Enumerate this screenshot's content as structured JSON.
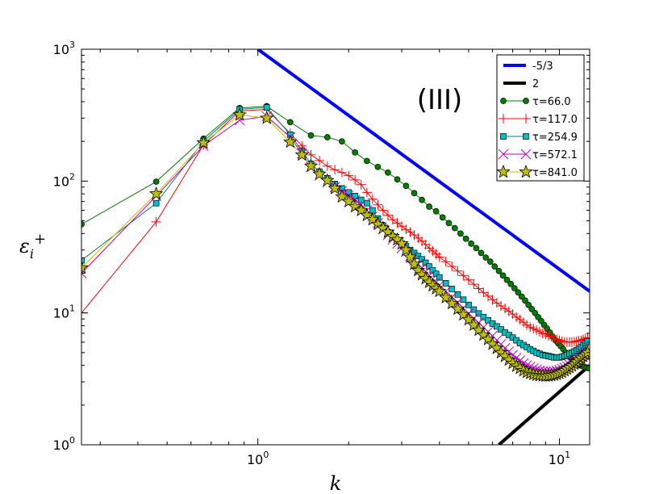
{
  "chart_data": {
    "type": "line",
    "xscale": "log",
    "yscale": "log",
    "xlim": [
      0.26,
      12.6
    ],
    "ylim": [
      1,
      1000
    ],
    "xlabel": "k",
    "ylabel": "ε_i^+",
    "ylabel_parts": {
      "base": "ε",
      "sub": "i",
      "sup": "+"
    },
    "annotation": "(III)",
    "x_ticks": [
      {
        "value": 1,
        "base": "10",
        "exp": "0"
      },
      {
        "value": 10,
        "base": "10",
        "exp": "1"
      }
    ],
    "y_ticks": [
      {
        "value": 1,
        "base": "10",
        "exp": "0"
      },
      {
        "value": 10,
        "base": "10",
        "exp": "1"
      },
      {
        "value": 100,
        "base": "10",
        "exp": "2"
      },
      {
        "value": 1000,
        "base": "10",
        "exp": "3"
      }
    ],
    "legend_position": "top-right",
    "reference_lines": [
      {
        "name": "-5/3",
        "label": "-5/3",
        "color": "#0000ff",
        "x": [
          1.0,
          12.6
        ],
        "y": [
          1000,
          14.6
        ]
      },
      {
        "name": "2",
        "label": "2",
        "color": "#000000",
        "x": [
          6.3,
          12.6
        ],
        "y": [
          1.0,
          4.0
        ]
      }
    ],
    "series": [
      {
        "name": "tau-66",
        "label": "τ=66.0",
        "color": "#007f00",
        "marker": "circle",
        "fill": "#008000",
        "x": [
          0.26,
          0.46,
          0.66,
          0.87,
          1.07,
          1.28,
          1.5,
          1.7,
          1.9,
          2.1,
          2.3,
          2.5,
          2.7,
          2.9,
          3.1,
          3.3,
          3.5,
          3.7,
          3.9,
          4.1,
          4.3,
          4.5,
          4.7,
          4.9,
          5.1,
          5.3,
          5.5,
          5.7,
          5.9,
          6.1,
          6.3,
          6.5,
          6.7,
          6.9,
          7.1,
          7.3,
          7.5,
          7.7,
          7.9,
          8.1,
          8.3,
          8.5,
          8.7,
          8.9,
          9.1,
          9.3,
          9.5,
          9.7,
          9.9,
          10.1,
          10.3,
          10.5,
          10.7,
          10.9,
          11.1,
          11.3,
          11.5,
          11.7,
          11.9,
          12.1,
          12.3,
          12.5
        ],
        "y": [
          47,
          99,
          210,
          358,
          370,
          280,
          222,
          215,
          200,
          165,
          142,
          128,
          116,
          103,
          92,
          81,
          72,
          64,
          59,
          53,
          48,
          44,
          40,
          36.5,
          33.5,
          31,
          28.5,
          26.3,
          24.5,
          22.5,
          20.8,
          19.2,
          17.8,
          16.6,
          15.4,
          14.3,
          13.3,
          12.4,
          11.5,
          10.7,
          10.0,
          9.3,
          8.7,
          8.1,
          7.6,
          7.1,
          6.6,
          6.2,
          5.9,
          5.6,
          5.3,
          5.0,
          4.8,
          4.6,
          4.4,
          4.3,
          4.1,
          4.0,
          3.95,
          3.9,
          3.85,
          3.8
        ]
      },
      {
        "name": "tau-117",
        "label": "τ=117.0",
        "color": "#ff0000",
        "marker": "plus",
        "fill": "none",
        "x": [
          0.26,
          0.46,
          0.66,
          0.87,
          1.07,
          1.28,
          1.4,
          1.5,
          1.6,
          1.7,
          1.8,
          1.9,
          2.0,
          2.1,
          2.2,
          2.3,
          2.4,
          2.5,
          2.6,
          2.7,
          2.8,
          2.9,
          3.0,
          3.1,
          3.2,
          3.3,
          3.4,
          3.5,
          3.6,
          3.7,
          3.8,
          3.9,
          4.0,
          4.2,
          4.4,
          4.6,
          4.8,
          5.0,
          5.2,
          5.4,
          5.6,
          5.8,
          6.0,
          6.2,
          6.4,
          6.6,
          6.8,
          7.0,
          7.2,
          7.4,
          7.6,
          7.8,
          8.0,
          8.2,
          8.4,
          8.6,
          8.8,
          9.0,
          9.2,
          9.4,
          9.6,
          9.8,
          10.0,
          10.2,
          10.4,
          10.6,
          10.8,
          11.0,
          11.2,
          11.4,
          11.6,
          11.8,
          12.0,
          12.2,
          12.4
        ],
        "y": [
          10,
          49,
          188,
          340,
          350,
          230,
          185,
          158,
          143,
          130,
          122,
          116,
          110,
          102,
          94,
          82,
          73,
          66,
          60,
          55,
          51,
          48,
          45.5,
          43,
          41,
          39,
          37,
          35,
          33,
          31,
          29.5,
          28,
          26.5,
          24.5,
          22.5,
          20.8,
          19.2,
          17.8,
          16.5,
          15.3,
          14.3,
          13.4,
          12.6,
          11.9,
          11.3,
          10.8,
          10.3,
          9.8,
          9.3,
          8.9,
          8.5,
          8.1,
          7.8,
          7.6,
          7.4,
          7.2,
          7.0,
          6.9,
          6.7,
          6.6,
          6.4,
          6.3,
          6.2,
          6.1,
          6.0,
          6.0,
          6.0,
          6.0,
          6.05,
          6.1,
          6.15,
          6.2,
          6.3,
          6.4,
          6.5
        ]
      },
      {
        "name": "tau-254",
        "label": "τ=254.9",
        "color": "#007f7f",
        "marker": "square",
        "fill": "#00bfbf",
        "x": [
          0.26,
          0.46,
          0.66,
          0.87,
          1.07,
          1.28,
          1.4,
          1.5,
          1.6,
          1.7,
          1.8,
          1.9,
          2.0,
          2.1,
          2.2,
          2.3,
          2.4,
          2.5,
          2.6,
          2.7,
          2.8,
          2.9,
          3.0,
          3.1,
          3.2,
          3.3,
          3.4,
          3.5,
          3.6,
          3.7,
          3.8,
          3.9,
          4.0,
          4.2,
          4.4,
          4.6,
          4.8,
          5.0,
          5.2,
          5.4,
          5.6,
          5.8,
          6.0,
          6.2,
          6.4,
          6.6,
          6.8,
          7.0,
          7.2,
          7.4,
          7.6,
          7.8,
          8.0,
          8.2,
          8.4,
          8.6,
          8.8,
          9.0,
          9.2,
          9.4,
          9.6,
          9.8,
          10.0,
          10.2,
          10.4,
          10.6,
          10.8,
          11.0,
          11.2,
          11.4,
          11.6,
          11.8,
          12.0,
          12.2,
          12.4
        ],
        "y": [
          25,
          68,
          200,
          350,
          362,
          225,
          170,
          135,
          118,
          105,
          95,
          88,
          82,
          77,
          72,
          68,
          60,
          52,
          46,
          41,
          38,
          35.5,
          33.5,
          32,
          30,
          28.5,
          27,
          25.5,
          24,
          22.5,
          21,
          19.8,
          18.6,
          16.8,
          15.2,
          13.8,
          12.6,
          11.5,
          10.6,
          9.9,
          9.3,
          8.8,
          8.3,
          7.9,
          7.5,
          7.1,
          6.8,
          6.5,
          6.2,
          5.9,
          5.7,
          5.5,
          5.3,
          5.15,
          5.0,
          4.9,
          4.8,
          4.75,
          4.7,
          4.65,
          4.6,
          4.6,
          4.6,
          4.65,
          4.7,
          4.8,
          4.9,
          5.0,
          5.1,
          5.2,
          5.35,
          5.5,
          5.7,
          5.9,
          6.1
        ]
      },
      {
        "name": "tau-572",
        "label": "τ=572.1",
        "color": "#bf00bf",
        "marker": "x",
        "fill": "none",
        "x": [
          0.26,
          0.46,
          0.66,
          0.87,
          1.07,
          1.28,
          1.4,
          1.5,
          1.6,
          1.7,
          1.8,
          1.9,
          2.0,
          2.1,
          2.2,
          2.3,
          2.4,
          2.5,
          2.6,
          2.7,
          2.8,
          2.9,
          3.0,
          3.1,
          3.2,
          3.3,
          3.4,
          3.5,
          3.6,
          3.7,
          3.8,
          3.9,
          4.0,
          4.2,
          4.4,
          4.6,
          4.8,
          5.0,
          5.2,
          5.4,
          5.6,
          5.8,
          6.0,
          6.2,
          6.4,
          6.6,
          6.8,
          7.0,
          7.2,
          7.4,
          7.6,
          7.8,
          8.0,
          8.2,
          8.4,
          8.6,
          8.8,
          9.0,
          9.2,
          9.4,
          9.6,
          9.8,
          10.0,
          10.2,
          10.4,
          10.6,
          10.8,
          11.0,
          11.2,
          11.4,
          11.6,
          11.8,
          12.0,
          12.2,
          12.4
        ],
        "y": [
          20,
          77,
          185,
          290,
          310,
          215,
          162,
          128,
          110,
          98,
          90,
          84,
          78,
          72,
          66,
          60,
          54,
          48,
          43,
          39,
          36,
          33.5,
          31,
          29,
          27,
          25,
          23.5,
          22,
          20.5,
          19.2,
          18.1,
          17.1,
          16.2,
          14.6,
          13.2,
          12.0,
          10.9,
          9.9,
          9.1,
          8.4,
          7.8,
          7.2,
          6.7,
          6.2,
          5.8,
          5.4,
          5.1,
          4.8,
          4.55,
          4.35,
          4.15,
          4.0,
          3.9,
          3.8,
          3.72,
          3.65,
          3.6,
          3.58,
          3.57,
          3.58,
          3.6,
          3.65,
          3.7,
          3.78,
          3.85,
          3.95,
          4.05,
          4.15,
          4.25,
          4.35,
          4.5,
          4.65,
          4.8,
          4.95,
          5.1
        ]
      },
      {
        "name": "tau-841",
        "label": "τ=841.0",
        "color": "#000000",
        "marker": "star",
        "fill": "#bfbf00",
        "x": [
          0.26,
          0.46,
          0.66,
          0.87,
          1.07,
          1.28,
          1.4,
          1.5,
          1.6,
          1.7,
          1.8,
          1.9,
          2.0,
          2.1,
          2.2,
          2.3,
          2.4,
          2.5,
          2.6,
          2.7,
          2.8,
          2.9,
          3.0,
          3.1,
          3.2,
          3.3,
          3.4,
          3.5,
          3.6,
          3.7,
          3.8,
          3.9,
          4.0,
          4.2,
          4.4,
          4.6,
          4.8,
          5.0,
          5.2,
          5.4,
          5.6,
          5.8,
          6.0,
          6.2,
          6.4,
          6.6,
          6.8,
          7.0,
          7.2,
          7.4,
          7.6,
          7.8,
          8.0,
          8.2,
          8.4,
          8.6,
          8.8,
          9.0,
          9.2,
          9.4,
          9.6,
          9.8,
          10.0,
          10.2,
          10.4,
          10.6,
          10.8,
          11.0,
          11.2,
          11.4,
          11.6,
          11.8,
          12.0,
          12.2,
          12.4
        ],
        "y": [
          22,
          80,
          195,
          318,
          300,
          198,
          158,
          130,
          113,
          101,
          88,
          76,
          70,
          64,
          60,
          55,
          51,
          47,
          44,
          41,
          38,
          36,
          33.5,
          30,
          26.5,
          23.5,
          21,
          19.5,
          18.2,
          17.1,
          16.1,
          15.3,
          14.6,
          13.1,
          11.8,
          10.7,
          9.7,
          8.9,
          8.1,
          7.4,
          6.8,
          6.3,
          5.8,
          5.4,
          5.0,
          4.7,
          4.4,
          4.15,
          3.95,
          3.8,
          3.65,
          3.55,
          3.48,
          3.42,
          3.38,
          3.35,
          3.33,
          3.32,
          3.33,
          3.35,
          3.38,
          3.42,
          3.48,
          3.55,
          3.65,
          3.75,
          3.85,
          3.97,
          4.1,
          4.25,
          4.4,
          4.55,
          4.7,
          4.85,
          5.0
        ]
      }
    ]
  }
}
